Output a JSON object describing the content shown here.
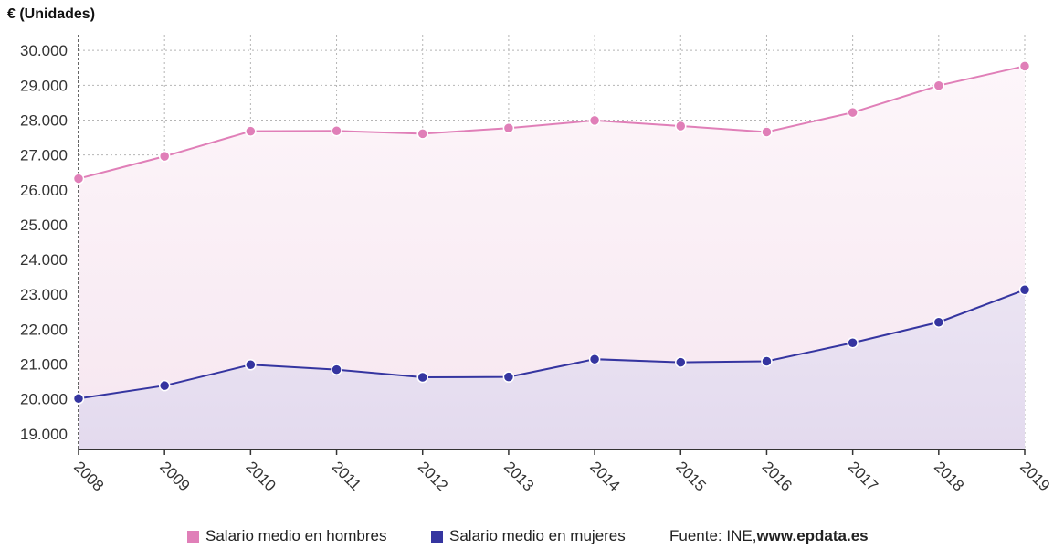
{
  "unit_label": "€ (Unidades)",
  "legend": {
    "men": "Salario medio en hombres",
    "women": "Salario medio en mujeres",
    "source_prefix": "Fuente: INE, ",
    "source_site": "www.epdata.es"
  },
  "colors": {
    "men": "#e07fb8",
    "women": "#3535a0",
    "grid": "#b5b5b5",
    "axis": "#333333"
  },
  "chart_data": {
    "type": "area",
    "x": [
      "2008",
      "2009",
      "2010",
      "2011",
      "2012",
      "2013",
      "2014",
      "2015",
      "2016",
      "2017",
      "2018",
      "2019"
    ],
    "series": [
      {
        "name": "Salario medio en hombres",
        "values": [
          26320,
          26960,
          27680,
          27690,
          27610,
          27770,
          27990,
          27830,
          27660,
          28220,
          28990,
          29550
        ]
      },
      {
        "name": "Salario medio en mujeres",
        "values": [
          20010,
          20380,
          20980,
          20840,
          20620,
          20630,
          21140,
          21050,
          21080,
          21610,
          22200,
          23130
        ]
      }
    ],
    "ylim": [
      18550,
      30450
    ],
    "yticks": [
      19000,
      20000,
      21000,
      22000,
      23000,
      24000,
      25000,
      26000,
      27000,
      28000,
      29000,
      30000
    ],
    "ytick_labels": [
      "19.000",
      "20.000",
      "21.000",
      "22.000",
      "23.000",
      "24.000",
      "25.000",
      "26.000",
      "27.000",
      "28.000",
      "29.000",
      "30.000"
    ],
    "grid": true,
    "legend_position": "bottom"
  }
}
